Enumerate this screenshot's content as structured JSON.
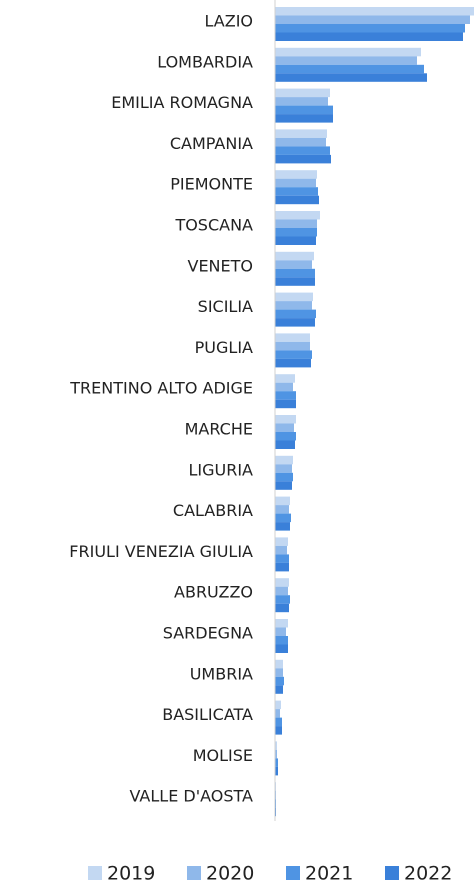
{
  "chart_data": {
    "type": "barh",
    "categories": [
      "LAZIO",
      "LOMBARDIA",
      "EMILIA ROMAGNA",
      "CAMPANIA",
      "PIEMONTE",
      "TOSCANA",
      "VENETO",
      "SICILIA",
      "PUGLIA",
      "TRENTINO ALTO ADIGE",
      "MARCHE",
      "LIGURIA",
      "CALABRIA",
      "FRIULI VENEZIA GIULIA",
      "ABRUZZO",
      "SARDEGNA",
      "UMBRIA",
      "BASILICATA",
      "MOLISE",
      "VALLE D'AOSTA"
    ],
    "series": [
      {
        "name": "2019",
        "color": "#c3d8f2",
        "values": [
          199,
          146,
          55,
          52,
          42,
          45,
          39,
          38,
          35,
          20,
          21,
          18,
          15,
          13,
          14,
          13,
          8,
          6,
          2,
          1
        ]
      },
      {
        "name": "2020",
        "color": "#8fb8ea",
        "values": [
          195,
          142,
          53,
          51,
          41,
          42,
          37,
          37,
          35,
          18,
          19,
          17,
          14,
          12,
          13,
          11,
          8,
          5,
          2,
          1
        ]
      },
      {
        "name": "2021",
        "color": "#4f94e3",
        "values": [
          190,
          149,
          58,
          55,
          43,
          42,
          40,
          41,
          37,
          21,
          21,
          18,
          16,
          14,
          15,
          13,
          9,
          7,
          3,
          1
        ]
      },
      {
        "name": "2022",
        "color": "#3a80d9",
        "values": [
          188,
          152,
          58,
          56,
          44,
          41,
          40,
          40,
          36,
          21,
          20,
          17,
          15,
          14,
          14,
          13,
          8,
          7,
          3,
          1
        ]
      }
    ],
    "xlim": [
      0,
      199
    ]
  }
}
